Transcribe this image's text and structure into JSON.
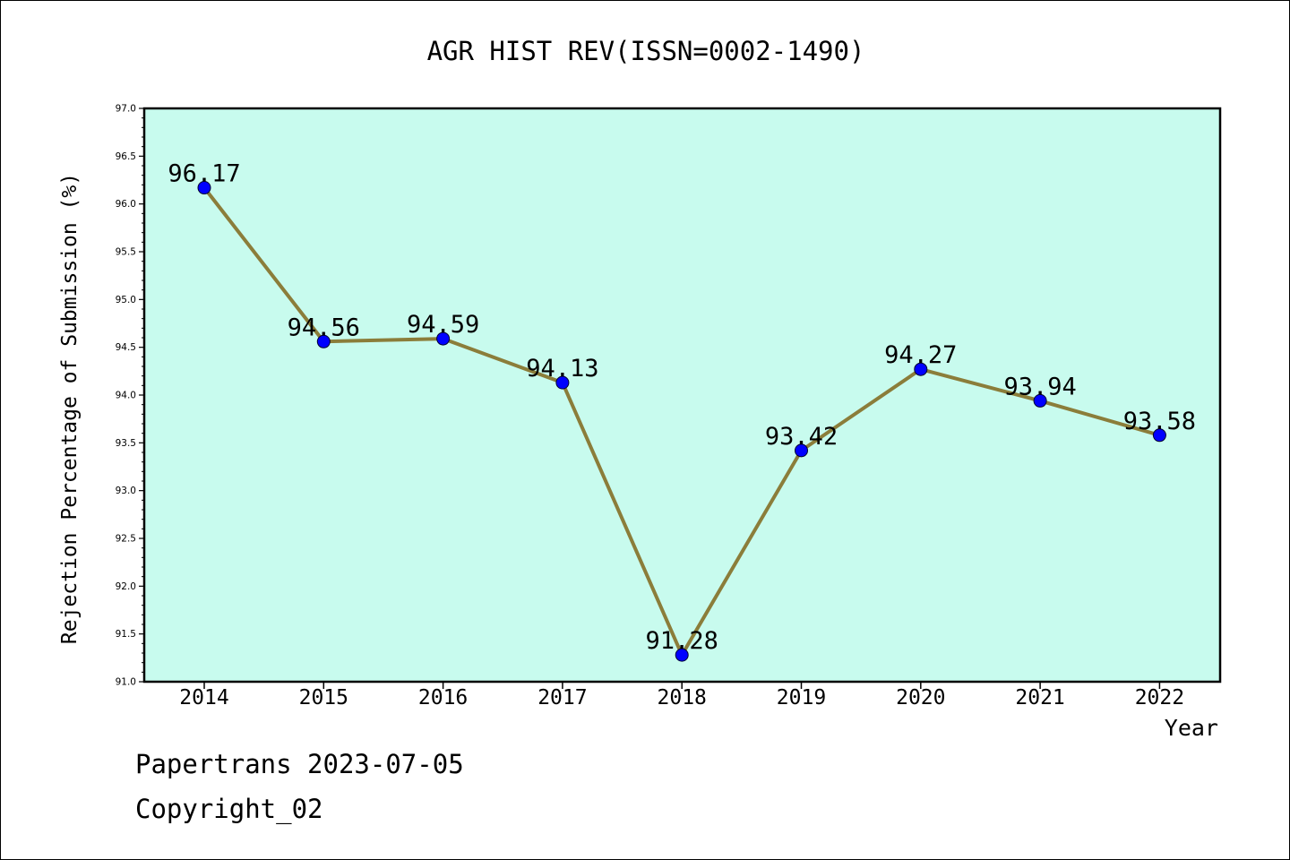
{
  "chart_data": {
    "type": "line",
    "title": "AGR HIST REV(ISSN=0002-1490)",
    "xlabel": "Year",
    "ylabel": "Rejection Percentage of Submission (%)",
    "categories": [
      "2014",
      "2015",
      "2016",
      "2017",
      "2018",
      "2019",
      "2020",
      "2021",
      "2022"
    ],
    "series": [
      {
        "values": [
          96.17,
          94.56,
          94.59,
          94.13,
          91.28,
          93.42,
          94.27,
          93.94,
          93.58
        ],
        "data_labels": [
          "96.17",
          "94.56",
          "94.59",
          "94.13",
          "91.28",
          "93.42",
          "94.27",
          "93.94",
          "93.58"
        ]
      }
    ],
    "ylim": [
      91.0,
      97.0
    ],
    "yticks": [
      "91.0",
      "91.5",
      "92.0",
      "92.5",
      "93.0",
      "93.5",
      "94.0",
      "94.5",
      "95.0",
      "95.5",
      "96.0",
      "96.5",
      "97.0"
    ],
    "grid": false,
    "legend": "none",
    "colors": {
      "plot_background": "#c8fbee",
      "line": "#8b7d3a",
      "marker": "#0000ff",
      "axes": "#000000"
    }
  },
  "footer": {
    "line1": "Papertrans 2023-07-05",
    "line2": "Copyright_02"
  }
}
